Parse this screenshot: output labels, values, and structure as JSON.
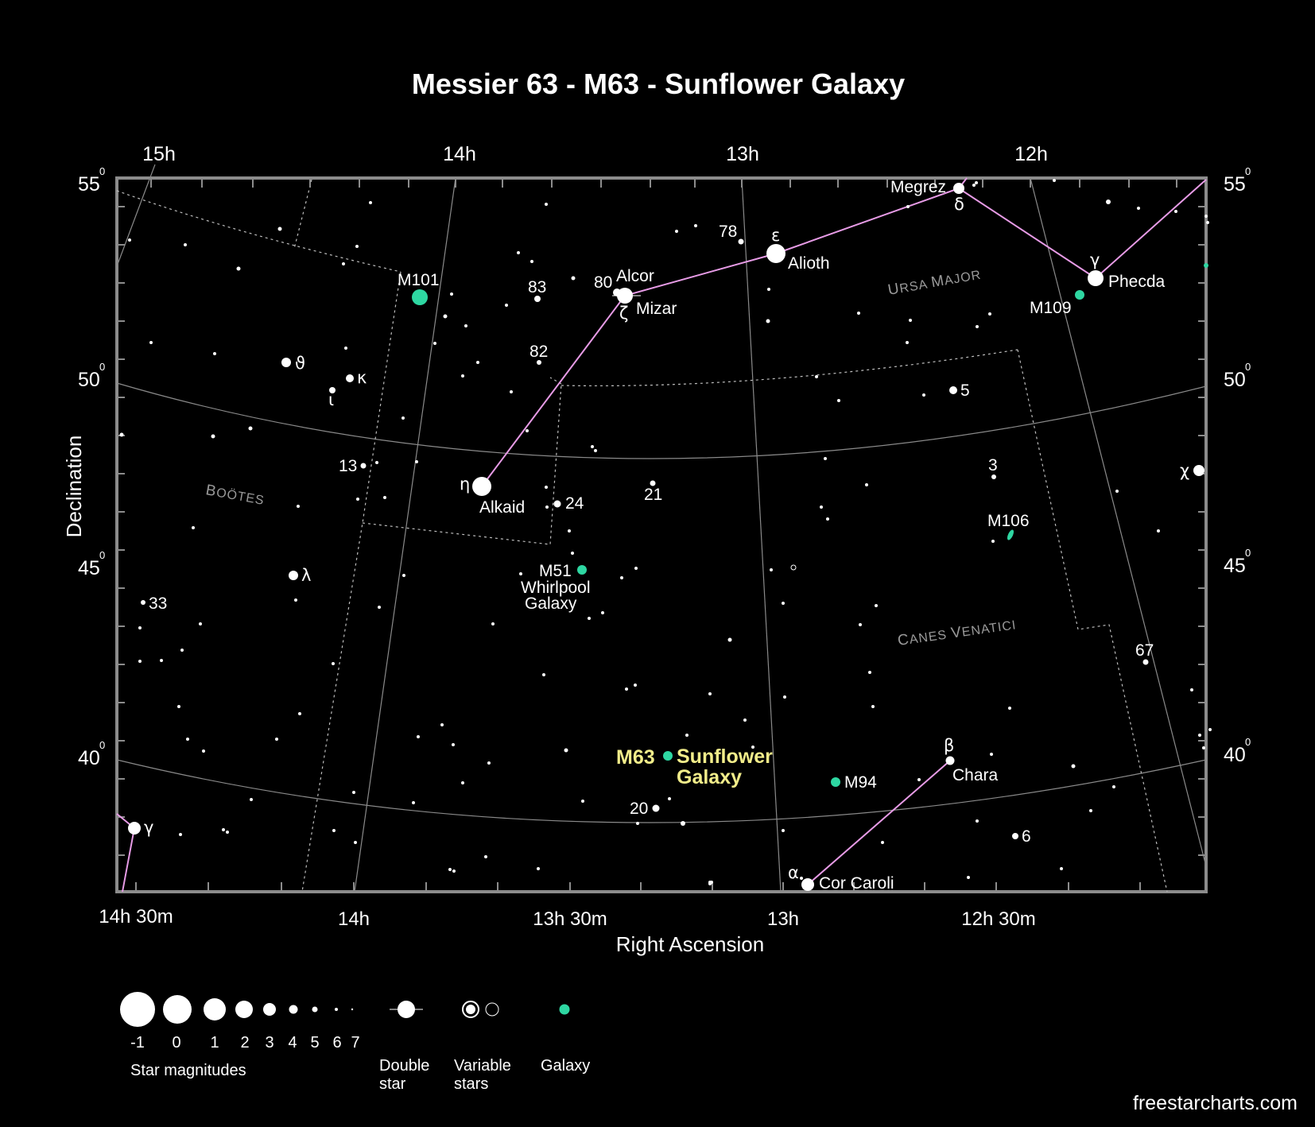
{
  "title": "Messier 63 - M63 - Sunflower Galaxy",
  "axes": {
    "x_title": "Right Ascension",
    "y_title": "Declination",
    "top_ticks": [
      "15h",
      "14h",
      "13h",
      "12h"
    ],
    "bottom_ticks": [
      "14h 30m",
      "14h",
      "13h 30m",
      "13h",
      "12h 30m"
    ],
    "dec_ticks": [
      "55",
      "50",
      "45",
      "40"
    ],
    "deg_symbol": "0"
  },
  "constellations": {
    "ursa_major": {
      "first": "U",
      "rest": "RSA ",
      "first2": "M",
      "rest2": "AJOR"
    },
    "bootes": {
      "first": "B",
      "rest": "OÖTES"
    },
    "canes_venatici": {
      "first": "C",
      "rest": "ANES ",
      "first2": "V",
      "rest2": "ENATICI"
    }
  },
  "labels": {
    "megrez": "Megrez",
    "delta": "δ",
    "epsilon": "ε",
    "alioth": "Alioth",
    "n78": "78",
    "gamma_uma": "γ",
    "phecda": "Phecda",
    "m109": "M109",
    "alcor": "Alcor",
    "n80": "80",
    "zeta": "ζ",
    "mizar": "Mizar",
    "n83": "83",
    "m101": "M101",
    "n82": "82",
    "theta": "ϑ",
    "kappa": "κ",
    "iota": "ι",
    "n5": "5",
    "n13": "13",
    "eta": "η",
    "alkaid": "Alkaid",
    "n24": "24",
    "n21": "21",
    "n3": "3",
    "chi": "χ",
    "m106": "M106",
    "m51": "M51",
    "m51_name1": "Whirlpool",
    "m51_name2": "Galaxy",
    "lambda": "λ",
    "n33": "33",
    "n67": "67",
    "m63": "M63",
    "m63_name1": "Sunflower",
    "m63_name2": "Galaxy",
    "m94": "M94",
    "beta": "β",
    "chara": "Chara",
    "n20": "20",
    "gamma_boo": "γ",
    "n6": "6",
    "alpha": "α",
    "cor_caroli": "Cor Caroli"
  },
  "legend": {
    "magnitudes": [
      "-1",
      "0",
      "1",
      "2",
      "3",
      "4",
      "5",
      "6",
      "7"
    ],
    "star_magnitudes": "Star magnitudes",
    "double_1": "Double",
    "double_2": "star",
    "variable_1": "Variable",
    "variable_2": "stars",
    "galaxy": "Galaxy"
  },
  "colors": {
    "background": "#000000",
    "frame": "#8c8c8c",
    "asterism": "#e79be6",
    "galaxy": "#2ed7a2",
    "highlight": "#f2ed8a"
  },
  "watermark": "freestarcharts.com"
}
